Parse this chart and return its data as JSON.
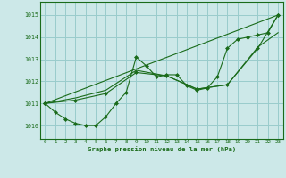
{
  "title": "Graphe pression niveau de la mer (hPa)",
  "bg_color": "#cce8e8",
  "grid_color": "#99cccc",
  "line_color": "#1a6b1a",
  "xlim": [
    -0.5,
    23.5
  ],
  "ylim": [
    1009.4,
    1015.6
  ],
  "yticks": [
    1010,
    1011,
    1012,
    1013,
    1014,
    1015
  ],
  "xticks": [
    0,
    1,
    2,
    3,
    4,
    5,
    6,
    7,
    8,
    9,
    10,
    11,
    12,
    13,
    14,
    15,
    16,
    17,
    18,
    19,
    20,
    21,
    22,
    23
  ],
  "series1": {
    "x": [
      0,
      1,
      2,
      3,
      4,
      5,
      6,
      7,
      8,
      9,
      10,
      11,
      12,
      13,
      14,
      15,
      16,
      17,
      18,
      19,
      20,
      21,
      22,
      23
    ],
    "y": [
      1011.0,
      1010.6,
      1010.3,
      1010.1,
      1010.0,
      1010.0,
      1010.4,
      1011.0,
      1011.5,
      1013.1,
      1012.7,
      1012.2,
      1012.3,
      1012.3,
      1011.8,
      1011.6,
      1011.7,
      1012.2,
      1013.5,
      1013.9,
      1014.0,
      1014.1,
      1014.2,
      1015.0
    ]
  },
  "series2": {
    "x": [
      0,
      3,
      6,
      9,
      12,
      15,
      18,
      21,
      23
    ],
    "y": [
      1011.0,
      1011.15,
      1011.45,
      1012.4,
      1012.25,
      1011.65,
      1011.85,
      1013.5,
      1015.0
    ]
  },
  "series3": {
    "x": [
      0,
      23
    ],
    "y": [
      1011.0,
      1015.0
    ]
  },
  "series4": {
    "x": [
      0,
      3,
      6,
      9,
      12,
      15,
      18,
      21,
      23
    ],
    "y": [
      1011.0,
      1011.25,
      1011.6,
      1012.5,
      1012.25,
      1011.65,
      1011.85,
      1013.55,
      1014.2
    ]
  }
}
